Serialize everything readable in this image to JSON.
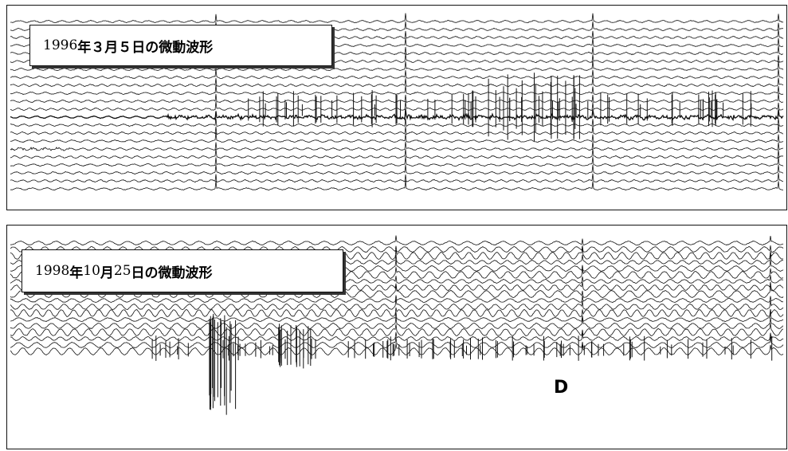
{
  "panels": [
    {
      "title": "1996 年３月５日の微動波形",
      "title_parts": [
        "1996 ",
        "年３月５日の微動波形"
      ],
      "trace_count": 22,
      "colors": {
        "line": "#111111",
        "frame": "#111111",
        "background": "#ffffff"
      }
    },
    {
      "title": "1998 年 10 月 25 日の微動波形",
      "title_parts": [
        "1998 ",
        "年 ",
        "10 ",
        "月 ",
        "25 ",
        "日の微動波形"
      ],
      "trace_count": 18,
      "colors": {
        "line": "#111111",
        "frame": "#111111",
        "background": "#ffffff"
      }
    }
  ],
  "marker_text": "D"
}
